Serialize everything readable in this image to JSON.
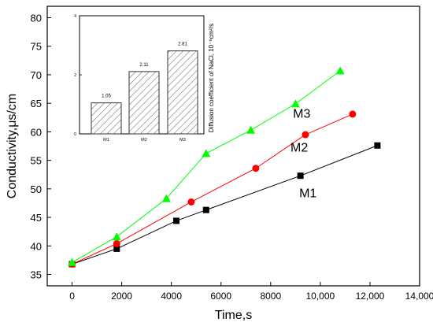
{
  "chart_data": [
    {
      "type": "line",
      "xlabel": "Time,s",
      "ylabel": "Conductivity,μs/cm",
      "xlim": [
        -1000,
        14000
      ],
      "ylim": [
        33,
        82
      ],
      "x_ticks": [
        0,
        2000,
        4000,
        6000,
        8000,
        10000,
        12000,
        14000
      ],
      "x_tick_labels": [
        "0",
        "2000",
        "4000",
        "6000",
        "8000",
        "10,000",
        "12,000",
        "14,000"
      ],
      "y_ticks": [
        35,
        40,
        45,
        50,
        55,
        60,
        65,
        70,
        75,
        80
      ],
      "y_tick_labels": [
        "35",
        "40",
        "45",
        "50",
        "55",
        "60",
        "65",
        "70",
        "75",
        "80"
      ],
      "grid": false,
      "series": [
        {
          "name": "M1",
          "color": "#000000",
          "marker": "square",
          "x": [
            0,
            1800,
            4200,
            5400,
            9200,
            12300
          ],
          "y": [
            36.8,
            39.5,
            44.4,
            46.3,
            52.3,
            57.6
          ]
        },
        {
          "name": "M2",
          "color": "#ff0000",
          "marker": "circle",
          "x": [
            0,
            1800,
            4800,
            7400,
            9400,
            11300
          ],
          "y": [
            36.8,
            40.4,
            47.7,
            53.6,
            59.5,
            63.1
          ]
        },
        {
          "name": "M3",
          "color": "#00ff00",
          "marker": "triangle",
          "x": [
            0,
            1800,
            3800,
            5400,
            7200,
            9000,
            10800
          ],
          "y": [
            37.1,
            41.6,
            48.3,
            56.2,
            60.3,
            64.9,
            70.7
          ]
        }
      ]
    },
    {
      "type": "bar",
      "ylabel": "Diffusion coefficient of NaCl, 10⁻⁶cm²/s",
      "categories": [
        "M1",
        "M2",
        "M3"
      ],
      "values": [
        1.05,
        2.11,
        2.81
      ],
      "value_labels": [
        "1.05",
        "2.11",
        "2.81"
      ],
      "ylim": [
        0,
        4
      ],
      "y_ticks": [
        0,
        2,
        4
      ],
      "y_tick_labels": [
        "0",
        "2",
        "4"
      ],
      "pattern": "diagonal-hatch"
    }
  ]
}
